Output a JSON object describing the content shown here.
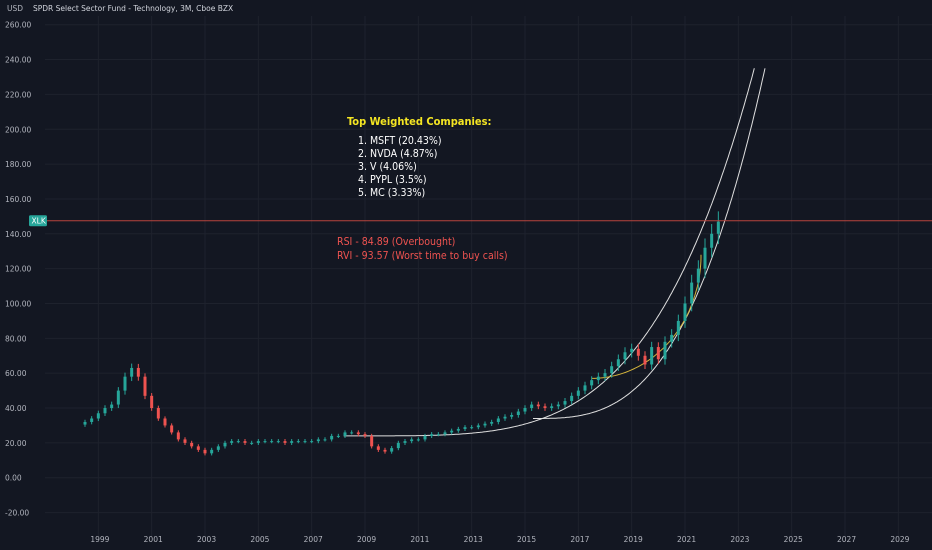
{
  "header": {
    "title": "SPDR Select Sector Fund - Technology, 3M, Cboe BZX",
    "currency": "USD"
  },
  "price_tag": {
    "label": "XLK",
    "value": 147.5
  },
  "annotations": {
    "top_title": "Top Weighted Companies:",
    "top_list": [
      "1. MSFT (20.43%)",
      "2. NVDA (4.87%)",
      "3. V (4.06%)",
      "4. PYPL (3.5%)",
      "5. MC (3.33%)"
    ],
    "rsi": "RSI - 84.89 (Overbought)",
    "rvi": "RVI - 93.57 (Worst time to buy calls)"
  },
  "colors": {
    "background": "#131722",
    "up": "#26a69a",
    "down": "#ef5350",
    "grid": "#1e222d",
    "text": "#b2b5be",
    "title_yellow": "#f5e623",
    "annotation_red": "#ef5350",
    "price_line": "#b8443c",
    "curve_white": "#e0e0e0",
    "curve_yellow": "#d4b43c"
  },
  "chart_data": {
    "type": "candlestick",
    "interval": "3M",
    "ylim": [
      -30,
      265
    ],
    "xlim": [
      1997.0,
      2030.0
    ],
    "y_ticks": [
      "-20.00",
      "0.00",
      "20.00",
      "40.00",
      "60.00",
      "80.00",
      "100.00",
      "120.00",
      "140.00",
      "160.00",
      "180.00",
      "200.00",
      "220.00",
      "240.00",
      "260.00"
    ],
    "y_tick_values": [
      -20,
      0,
      20,
      40,
      60,
      80,
      100,
      120,
      140,
      160,
      180,
      200,
      220,
      240,
      260
    ],
    "x_ticks": [
      "1999",
      "2001",
      "2003",
      "2005",
      "2007",
      "2009",
      "2011",
      "2013",
      "2015",
      "2017",
      "2019",
      "2021",
      "2023",
      "2025",
      "2027",
      "2029"
    ],
    "x_tick_values": [
      1999,
      2001,
      2003,
      2005,
      2007,
      2009,
      2011,
      2013,
      2015,
      2017,
      2019,
      2021,
      2023,
      2025,
      2027,
      2029
    ],
    "ohlc_close": [
      32,
      34,
      37,
      40,
      42,
      50,
      58,
      63,
      58,
      47,
      40,
      34,
      30,
      26,
      22,
      20,
      18,
      16,
      14,
      16,
      18,
      20,
      21,
      21,
      20,
      20,
      21,
      21,
      21,
      21,
      20,
      21,
      21,
      21,
      21,
      22,
      22,
      24,
      24,
      26,
      26,
      25,
      24,
      18,
      16,
      15,
      17,
      20,
      21,
      22,
      22,
      24,
      25,
      25,
      26,
      27,
      28,
      29,
      29,
      30,
      31,
      32,
      34,
      35,
      36,
      38,
      40,
      42,
      41,
      40,
      41,
      42,
      44,
      47,
      50,
      53,
      56,
      58,
      60,
      64,
      68,
      72,
      74,
      70,
      65,
      75,
      68,
      78,
      82,
      90,
      100,
      112,
      120,
      132,
      140,
      147
    ],
    "first_bar_time": 1998.5,
    "bar_step": 0.25,
    "price_line": 147.5
  }
}
